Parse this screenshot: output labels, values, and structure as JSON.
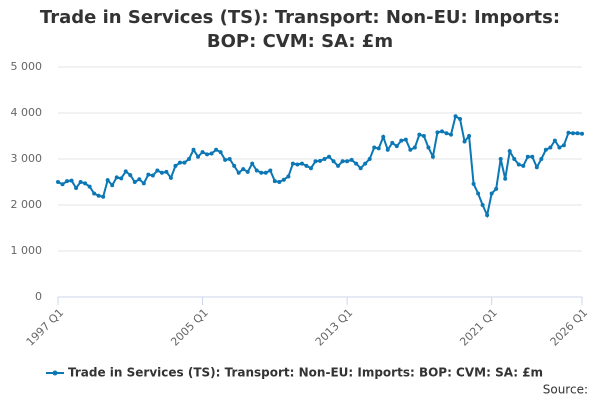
{
  "chart_data": {
    "type": "line",
    "title": "Trade in Services (TS): Transport: Non-EU: Imports: BOP: CVM: SA: £m",
    "categories": [
      "1997 Q1",
      null,
      null,
      null,
      null,
      null,
      null,
      null,
      null,
      null,
      null,
      null,
      null,
      null,
      null,
      null,
      null,
      null,
      null,
      null,
      null,
      null,
      null,
      null,
      null,
      null,
      null,
      null,
      null,
      null,
      null,
      null,
      "2005 Q1",
      null,
      null,
      null,
      null,
      null,
      null,
      null,
      null,
      null,
      null,
      null,
      null,
      null,
      null,
      null,
      null,
      null,
      null,
      null,
      null,
      null,
      null,
      null,
      null,
      null,
      null,
      null,
      null,
      null,
      null,
      null,
      "2013 Q1",
      null,
      null,
      null,
      null,
      null,
      null,
      null,
      null,
      null,
      null,
      null,
      null,
      null,
      null,
      null,
      null,
      null,
      null,
      null,
      null,
      null,
      null,
      null,
      null,
      null,
      null,
      null,
      null,
      null,
      null,
      null,
      "2021 Q1",
      null,
      null,
      null,
      null,
      null,
      null,
      null,
      null,
      null,
      null,
      null,
      null,
      null,
      null,
      null,
      null,
      null,
      null,
      null,
      "2026 Q1"
    ],
    "series": [
      {
        "name": "Trade in Services (TS): Transport: Non-EU: Imports: BOP: CVM: SA: £m",
        "color": "#0b77b5",
        "values": [
          2500,
          2450,
          2520,
          2530,
          2370,
          2500,
          2470,
          2400,
          2250,
          2200,
          2180,
          2540,
          2430,
          2600,
          2580,
          2730,
          2650,
          2500,
          2560,
          2470,
          2660,
          2640,
          2750,
          2700,
          2720,
          2590,
          2850,
          2920,
          2920,
          3000,
          3200,
          3050,
          3150,
          3100,
          3120,
          3200,
          3150,
          2980,
          3000,
          2850,
          2700,
          2780,
          2720,
          2900,
          2750,
          2700,
          2700,
          2750,
          2520,
          2500,
          2550,
          2620,
          2900,
          2880,
          2900,
          2850,
          2800,
          2950,
          2960,
          3000,
          3050,
          2950,
          2850,
          2950,
          2950,
          2980,
          2900,
          2800,
          2900,
          3000,
          3250,
          3230,
          3480,
          3200,
          3350,
          3280,
          3400,
          3420,
          3200,
          3250,
          3530,
          3500,
          3250,
          3050,
          3580,
          3600,
          3560,
          3530,
          3930,
          3870,
          3380,
          3500,
          2460,
          2250,
          2000,
          1780,
          2250,
          2350,
          3000,
          2570,
          3170,
          3000,
          2880,
          2850,
          3050,
          3050,
          2820,
          3000,
          3200,
          3250,
          3400,
          3250,
          3300,
          3570,
          3560,
          3560,
          3550
        ]
      }
    ],
    "ylim": [
      0,
      5000
    ],
    "yticks": [
      0,
      {
        "value": 1000,
        "label": "1 000"
      },
      {
        "value": 2000,
        "label": "2 000"
      },
      {
        "value": 3000,
        "label": "3 000"
      },
      {
        "value": 4000,
        "label": "4 000"
      },
      {
        "value": 5000,
        "label": "5 000"
      }
    ],
    "grid": true,
    "source": "Source:"
  }
}
